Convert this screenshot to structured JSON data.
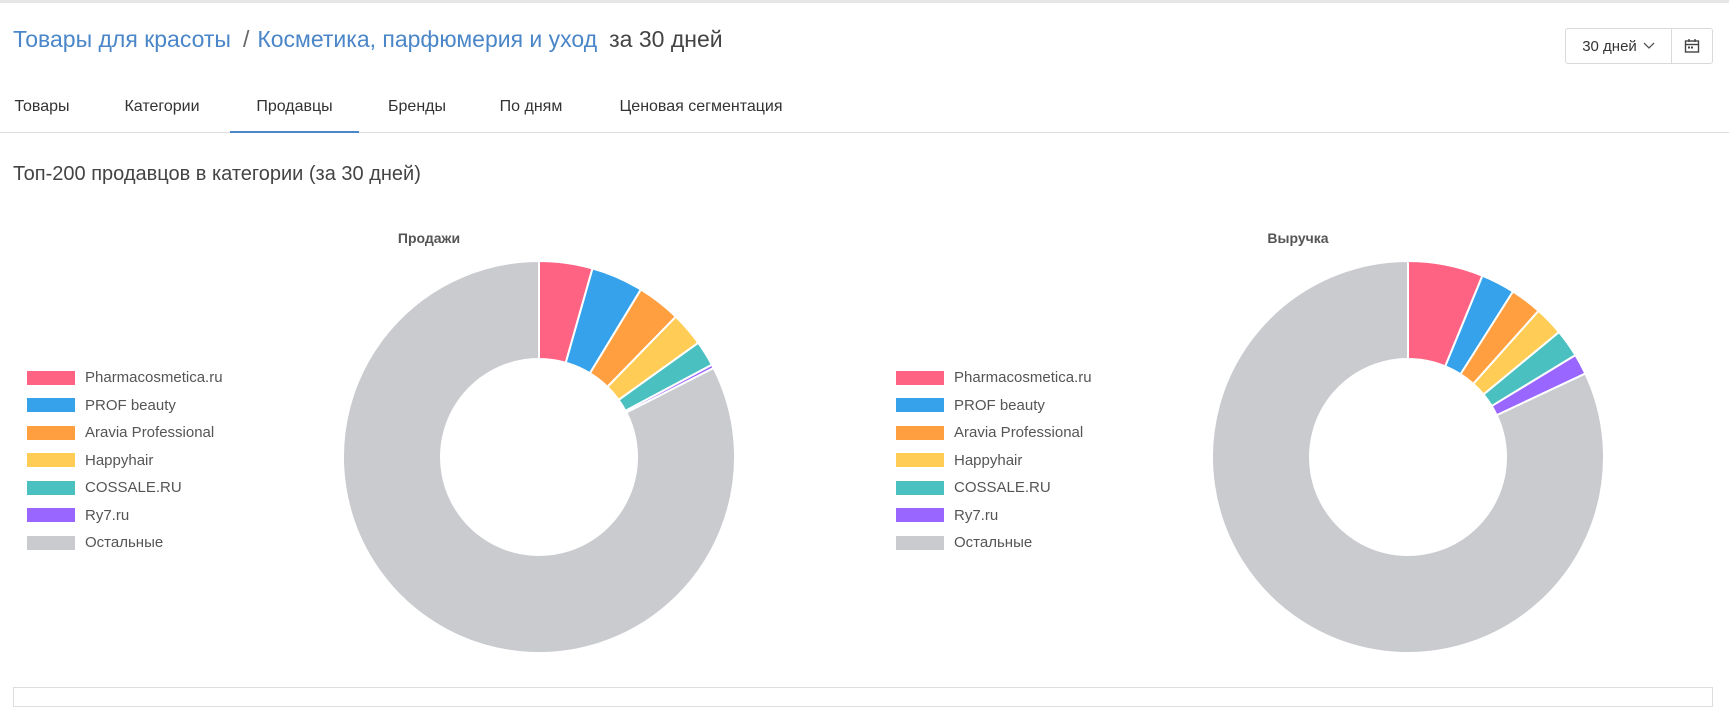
{
  "header": {
    "breadcrumb_root": "Товары для красоты",
    "separator": "/",
    "breadcrumb_category": "Косметика, парфюмерия и уход",
    "period_text": "за 30 дней"
  },
  "period_select": {
    "value": "30 дней"
  },
  "tabs": [
    {
      "label": "Товары",
      "active": false
    },
    {
      "label": "Категории",
      "active": false
    },
    {
      "label": "Продавцы",
      "active": true
    },
    {
      "label": "Бренды",
      "active": false
    },
    {
      "label": "По дням",
      "active": false
    },
    {
      "label": "Ценовая сегментация",
      "active": false
    }
  ],
  "section_title": "Топ-200 продавцов в категории (за 30 дней)",
  "colors": {
    "Pharmacosmetica.ru": "#ff6384",
    "PROF beauty": "#36a2eb",
    "Aravia Professional": "#ff9f40",
    "Happyhair": "#ffcd56",
    "COSSALE.RU": "#4bc0c0",
    "Ry7.ru": "#9966ff",
    "Остальные": "#c9cbcf"
  },
  "chart_data": [
    {
      "type": "pie",
      "title": "Продажи",
      "legend_position": "left",
      "donut": true,
      "categories": [
        "Pharmacosmetica.ru",
        "PROF beauty",
        "Aravia Professional",
        "Happyhair",
        "COSSALE.RU",
        "Ry7.ru",
        "Остальные"
      ],
      "values": [
        4.4,
        4.3,
        3.6,
        2.8,
        2.1,
        0.3,
        82.5
      ]
    },
    {
      "type": "pie",
      "title": "Выручка",
      "legend_position": "left",
      "donut": true,
      "categories": [
        "Pharmacosmetica.ru",
        "PROF beauty",
        "Aravia Professional",
        "Happyhair",
        "COSSALE.RU",
        "Ry7.ru",
        "Остальные"
      ],
      "values": [
        6.2,
        2.8,
        2.6,
        2.4,
        2.3,
        1.7,
        82.0
      ]
    }
  ]
}
